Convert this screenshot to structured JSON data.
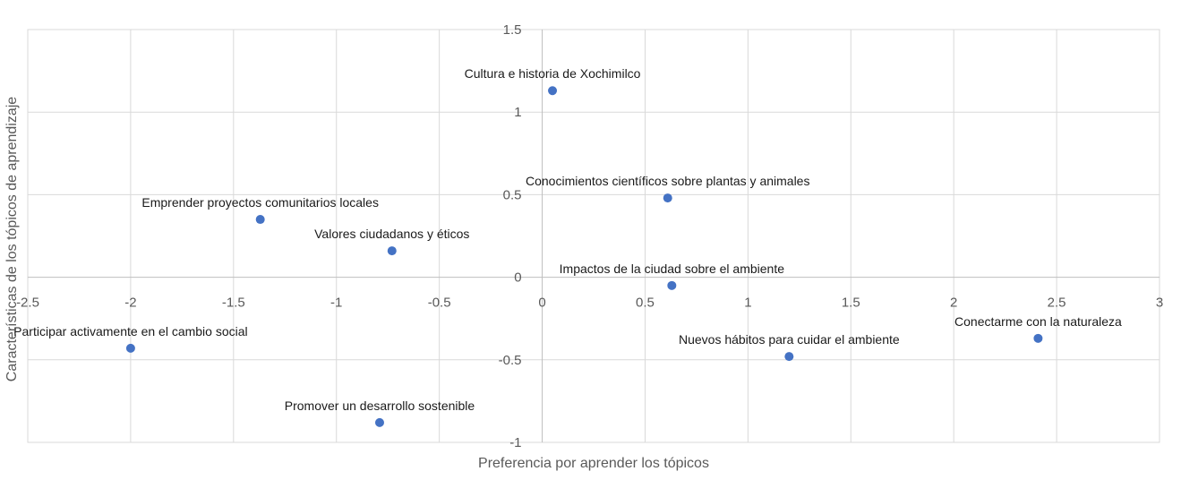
{
  "chart_data": {
    "type": "scatter",
    "title": "",
    "xlabel": "Preferencia por aprender los tópicos",
    "ylabel": "Características de los tópicos de aprendizaje",
    "xlim": [
      -2.5,
      3
    ],
    "ylim": [
      -1,
      1.5
    ],
    "x_ticks": [
      "-2.5",
      "-2",
      "-1.5",
      "-1",
      "-0.5",
      "0",
      "0.5",
      "1",
      "1.5",
      "2",
      "2.5",
      "3"
    ],
    "y_ticks": [
      "1.5",
      "1",
      "0.5",
      "0",
      "-0.5",
      "-1"
    ],
    "grid": true,
    "legend": "none",
    "marker_color": "#4472C4",
    "grid_color": "#D9D9D9",
    "points": [
      {
        "label": "Cultura e historia de Xochimilco",
        "x": 0.05,
        "y": 1.13
      },
      {
        "label": "Conocimientos científicos sobre plantas y animales",
        "x": 0.61,
        "y": 0.48
      },
      {
        "label": "Emprender proyectos comunitarios locales",
        "x": -1.37,
        "y": 0.35
      },
      {
        "label": "Valores ciudadanos y éticos",
        "x": -0.73,
        "y": 0.16
      },
      {
        "label": "Impactos de la ciudad sobre el ambiente",
        "x": 0.63,
        "y": -0.05
      },
      {
        "label": "Conectarme con la naturaleza",
        "x": 2.41,
        "y": -0.37
      },
      {
        "label": "Nuevos hábitos para cuidar el ambiente",
        "x": 1.2,
        "y": -0.48
      },
      {
        "label": "Participar activamente en el cambio social",
        "x": -2.0,
        "y": -0.43
      },
      {
        "label": "Promover un desarrollo sostenible",
        "x": -0.79,
        "y": -0.88
      }
    ]
  }
}
